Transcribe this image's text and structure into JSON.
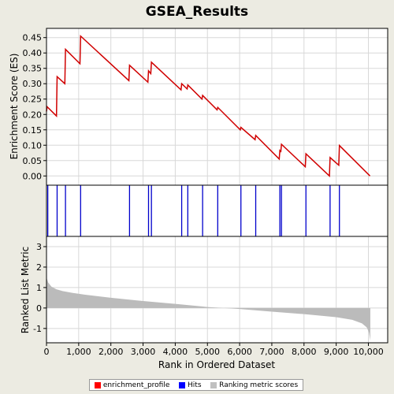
{
  "chart_data": [
    {
      "type": "line",
      "title": "GSEA_Results",
      "ylabel": "Enrichment Score (ES)",
      "ylim": [
        -0.03,
        0.48
      ],
      "yticks": [
        "0.00",
        "0.05",
        "0.10",
        "0.15",
        "0.20",
        "0.25",
        "0.30",
        "0.35",
        "0.40",
        "0.45"
      ],
      "yticks_values": [
        0,
        0.05,
        0.1,
        0.15,
        0.2,
        0.25,
        0.3,
        0.35,
        0.4,
        0.45
      ],
      "grid": true,
      "series": [
        {
          "name": "enrichment_profile",
          "color": "#d00000",
          "x": [
            0,
            20,
            310,
            330,
            570,
            590,
            1040,
            1060,
            2560,
            2580,
            3150,
            3170,
            3240,
            3260,
            4180,
            4200,
            4370,
            4390,
            4830,
            4850,
            5300,
            5320,
            6020,
            6040,
            6480,
            6500,
            7230,
            7250,
            7280,
            7300,
            8040,
            8060,
            8790,
            8810,
            9080,
            9100,
            10050
          ],
          "y": [
            0.21,
            0.225,
            0.195,
            0.323,
            0.3,
            0.412,
            0.365,
            0.455,
            0.31,
            0.36,
            0.305,
            0.342,
            0.333,
            0.37,
            0.28,
            0.3,
            0.283,
            0.296,
            0.25,
            0.262,
            0.215,
            0.223,
            0.15,
            0.158,
            0.118,
            0.132,
            0.055,
            0.083,
            0.08,
            0.103,
            0.03,
            0.072,
            0.0,
            0.06,
            0.035,
            0.099,
            0.0
          ]
        }
      ]
    },
    {
      "type": "hits",
      "name": "Hits",
      "color": "#0000cc",
      "x": [
        40,
        330,
        590,
        1060,
        2580,
        3170,
        3260,
        4200,
        4390,
        4850,
        5320,
        6040,
        6500,
        7250,
        7300,
        8060,
        8810,
        9100
      ]
    },
    {
      "type": "area",
      "name": "Ranking metric scores",
      "color": "#bbbbbb",
      "xlabel": "Rank in Ordered Dataset",
      "ylabel": "Ranked List Metric",
      "ylim": [
        -1.7,
        3.5
      ],
      "yticks": [
        "-1",
        "0",
        "1",
        "2",
        "3"
      ],
      "yticks_values": [
        -1,
        0,
        1,
        2,
        3
      ],
      "xlim": [
        0,
        10600
      ],
      "xticks": [
        "0",
        "1,000",
        "2,000",
        "3,000",
        "4,000",
        "5,000",
        "6,000",
        "7,000",
        "8,000",
        "9,000",
        "10,000"
      ],
      "xticks_values": [
        0,
        1000,
        2000,
        3000,
        4000,
        5000,
        6000,
        7000,
        8000,
        9000,
        10000
      ],
      "x": [
        0,
        50,
        150,
        300,
        500,
        800,
        1200,
        2000,
        3000,
        4000,
        5000,
        5500,
        6000,
        7000,
        8000,
        9000,
        9500,
        9800,
        9950,
        10020,
        10060
      ],
      "y": [
        1.5,
        1.25,
        1.05,
        0.92,
        0.83,
        0.74,
        0.65,
        0.5,
        0.34,
        0.2,
        0.05,
        0.0,
        -0.05,
        -0.18,
        -0.3,
        -0.45,
        -0.58,
        -0.75,
        -0.95,
        -1.2,
        -1.6
      ]
    }
  ],
  "legend": {
    "items": [
      {
        "label": "enrichment_profile",
        "color": "#ff0000"
      },
      {
        "label": "Hits",
        "color": "#0000ff"
      },
      {
        "label": "Ranking metric scores",
        "color": "#c0c0c0"
      }
    ]
  }
}
